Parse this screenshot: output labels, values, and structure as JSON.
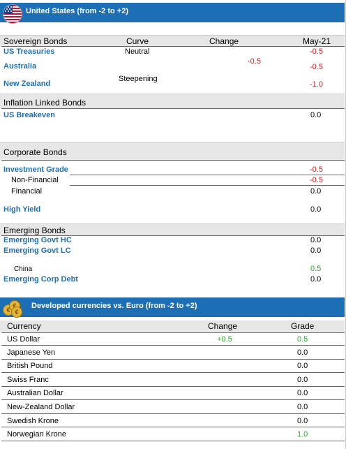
{
  "us": {
    "banner_title": "United States (from -2 to +2)",
    "header": {
      "sovereign": "Sovereign Bonds",
      "curve": "Curve",
      "change": "Change",
      "may": "May-21"
    },
    "sovereign": [
      {
        "name": "US Treasuries",
        "curve": "Neutral",
        "value": "-0.5"
      },
      {
        "name": "Australia",
        "change": "-0.5",
        "value": "-0.5"
      },
      {
        "name": "New Zealand",
        "curve": "Steepening",
        "value": "-1.0"
      }
    ],
    "inflation": {
      "title": "Inflation Linked Bonds",
      "items": [
        {
          "name": "US Breakeven",
          "value": "0.0"
        }
      ]
    },
    "corporate": {
      "title": "Corporate Bonds",
      "items": [
        {
          "name": "Investment Grade",
          "value": "-0.5"
        },
        {
          "name": "Non-Financial",
          "value": "-0.5"
        },
        {
          "name": "Financial",
          "value": "0.0"
        },
        {
          "name": "High Yield",
          "value": "0.0"
        }
      ]
    },
    "emerging": {
      "title": "Emerging Bonds",
      "items": [
        {
          "name": "Emerging Govt HC",
          "value": "0.0"
        },
        {
          "name": "Emerging Govt LC",
          "value": "0.0"
        },
        {
          "name": "China",
          "value": "0.5"
        },
        {
          "name": "Emerging Corp Debt",
          "value": "0.0"
        }
      ]
    }
  },
  "fx": {
    "banner_title": "Developed currencies vs. Euro (from -2 to +2)",
    "header": {
      "currency": "Currency",
      "change": "Change",
      "grade": "Grade"
    },
    "rows": [
      {
        "name": "US Dollar",
        "change": "+0.5",
        "grade": "0.5"
      },
      {
        "name": "Japanese Yen",
        "change": "",
        "grade": "0.0"
      },
      {
        "name": "British Pound",
        "change": "",
        "grade": "0.0"
      },
      {
        "name": "Swiss Franc",
        "change": "",
        "grade": "0.0"
      },
      {
        "name": "Australian Dollar",
        "change": "",
        "grade": "0.0"
      },
      {
        "name": "New-Zealand Dollar",
        "change": "",
        "grade": "0.0"
      },
      {
        "name": "Swedish Krone",
        "change": "",
        "grade": "0.0"
      },
      {
        "name": "Norwegian Krone",
        "change": "",
        "grade": "1.0"
      }
    ]
  },
  "colors": {
    "banner": "#1c6fb5",
    "label_blue": "#1f6fb2",
    "negative": "#d11a1a",
    "positive": "#2aa52a",
    "section_bg": "#e6e6e6"
  },
  "icons": {
    "us_banner": "us-flag-icon",
    "fx_banner": "coins-icon"
  }
}
